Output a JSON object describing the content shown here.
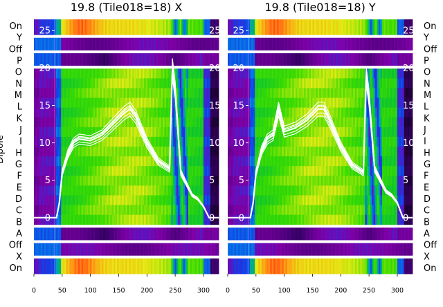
{
  "colors": {
    "background": "#ffffff",
    "spectrum_line": "#ffffff",
    "axis_text": "#000000",
    "colormap": "gnuplot2-like (black, purple, blue, green, yellow, white)"
  },
  "figure": {
    "y_side_label": "Dipole",
    "row_labels": [
      "On",
      "Y",
      "Off",
      "P",
      "O",
      "N",
      "M",
      "L",
      "K",
      "J",
      "I",
      "H",
      "G",
      "F",
      "E",
      "D",
      "C",
      "B",
      "A",
      "Off",
      "X",
      "On"
    ]
  },
  "chart_data": [
    {
      "type": "heatmap",
      "title": "19.8 (Tile018=18) X",
      "x_ticks": [
        "0",
        "50",
        "100",
        "150",
        "200",
        "250",
        "300"
      ],
      "xlim": [
        0,
        327
      ],
      "inner_y_ticks": [
        "0",
        "5",
        "10",
        "15",
        "20",
        "25"
      ],
      "inner_ylim": [
        -7.5,
        26.5
      ],
      "bands": [
        {
          "name": "top On",
          "x": [
            0,
            327
          ],
          "y": [
            -21.4,
            -19.9
          ]
        },
        {
          "name": "Y",
          "x": [
            0,
            327
          ],
          "y": [
            -19.6,
            -18.4
          ]
        },
        {
          "name": "Off",
          "x": [
            0,
            327
          ],
          "y": [
            -18.1,
            -16.9
          ]
        },
        {
          "name": "dipoles P-A",
          "x": [
            0,
            327
          ],
          "y": [
            -16.6,
            -1.4
          ]
        },
        {
          "name": "Off",
          "x": [
            0,
            327
          ],
          "y": [
            -1.1,
            0.1
          ]
        },
        {
          "name": "X",
          "x": [
            0,
            327
          ],
          "y": [
            0.4,
            1.6
          ]
        },
        {
          "name": "bottom On",
          "x": [
            0,
            327
          ],
          "y": [
            1.9,
            3.4
          ]
        }
      ],
      "spectrum": {
        "x": [
          0,
          40,
          45,
          50,
          60,
          70,
          80,
          100,
          120,
          140,
          160,
          170,
          180,
          200,
          220,
          240,
          245,
          250,
          260,
          270,
          280,
          290,
          300,
          310,
          327
        ],
        "y": [
          0,
          0,
          2,
          6,
          8.5,
          10,
          10.5,
          10.3,
          11,
          12.5,
          14,
          14.5,
          13.5,
          10,
          7.5,
          6.5,
          20,
          17,
          6,
          4.5,
          3,
          2.5,
          1.5,
          0,
          0
        ]
      }
    },
    {
      "type": "heatmap",
      "title": "19.8 (Tile018=18) Y",
      "x_ticks": [
        "0",
        "50",
        "100",
        "150",
        "200",
        "250",
        "300"
      ],
      "xlim": [
        0,
        327
      ],
      "inner_y_ticks": [
        "0",
        "5",
        "10",
        "15",
        "20",
        "25"
      ],
      "inner_ylim": [
        -7.5,
        26.5
      ],
      "bands": [
        {
          "name": "top On",
          "x": [
            0,
            327
          ],
          "y": [
            -21.4,
            -19.9
          ]
        },
        {
          "name": "Y",
          "x": [
            0,
            327
          ],
          "y": [
            -19.6,
            -18.4
          ]
        },
        {
          "name": "Off",
          "x": [
            0,
            327
          ],
          "y": [
            -18.1,
            -16.9
          ]
        },
        {
          "name": "dipoles P-A",
          "x": [
            0,
            327
          ],
          "y": [
            -16.6,
            -1.4
          ]
        },
        {
          "name": "Off",
          "x": [
            0,
            327
          ],
          "y": [
            -1.1,
            0.1
          ]
        },
        {
          "name": "X",
          "x": [
            0,
            327
          ],
          "y": [
            0.4,
            1.6
          ]
        },
        {
          "name": "bottom On",
          "x": [
            0,
            327
          ],
          "y": [
            1.9,
            3.4
          ]
        }
      ],
      "spectrum": {
        "x": [
          0,
          40,
          45,
          50,
          60,
          70,
          80,
          90,
          100,
          120,
          140,
          160,
          170,
          180,
          200,
          220,
          240,
          245,
          250,
          260,
          270,
          280,
          290,
          300,
          310,
          327
        ],
        "y": [
          0,
          0,
          2,
          6,
          9,
          10.5,
          11,
          14.5,
          11.5,
          12,
          13,
          14.5,
          14.5,
          13,
          9.5,
          7,
          6,
          19,
          16,
          6.5,
          5,
          3.5,
          3,
          2,
          0,
          0
        ]
      }
    }
  ]
}
